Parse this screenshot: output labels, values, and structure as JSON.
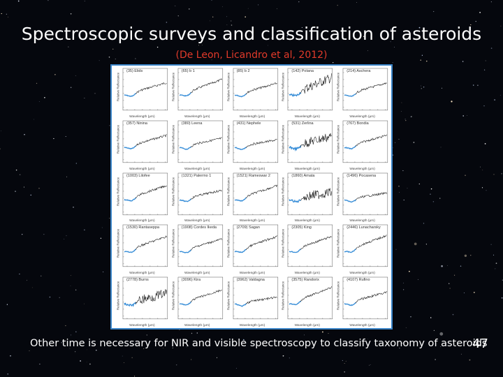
{
  "slide": {
    "title": "Spectroscopic surveys and classification of asteroids",
    "subtitle": "(De Leon, Licandro et al, 2012)",
    "footer": "Other time is necessary for NIR and visible spectroscopy to classify taxonomy of asteroids",
    "page_number": "47"
  },
  "colors": {
    "background": "#05070d",
    "subtitle": "#e23a2a",
    "figure_border": "#3a84c8",
    "visible_spectrum": "#3a8fd8",
    "nir_spectrum": "#1a1a1a"
  },
  "figure": {
    "y_axis_label": "Relative Reflectance",
    "x_axis_label": "Wavelength (μm)",
    "panels": [
      {
        "label": "(35) Elids"
      },
      {
        "label": "(65) b 1"
      },
      {
        "label": "(85) b 2"
      },
      {
        "label": "(142) Polana"
      },
      {
        "label": "(214) Aschera"
      },
      {
        "label": "(357) Ninina"
      },
      {
        "label": "(380) Leena"
      },
      {
        "label": "(431) Nephele"
      },
      {
        "label": "(531) Zerlina"
      },
      {
        "label": "(767) Bondia"
      },
      {
        "label": "(1003) Lilofee"
      },
      {
        "label": "(1321) Palermo 1"
      },
      {
        "label": "(1521) Rameswar 2"
      },
      {
        "label": "(1860) Amata"
      },
      {
        "label": "(1496) Pocasena"
      },
      {
        "label": "(1530) Rantaseppa"
      },
      {
        "label": "(1908) Cordes Ikeda"
      },
      {
        "label": "(2709) Sagan"
      },
      {
        "label": "(2305) King"
      },
      {
        "label": "(2446) Lunacharsky"
      },
      {
        "label": "(2778) Burns"
      },
      {
        "label": "(3096) Kira"
      },
      {
        "label": "(3962) Valdagna"
      },
      {
        "label": "(3575) Randorix"
      },
      {
        "label": "(4107) Rufino"
      }
    ]
  }
}
